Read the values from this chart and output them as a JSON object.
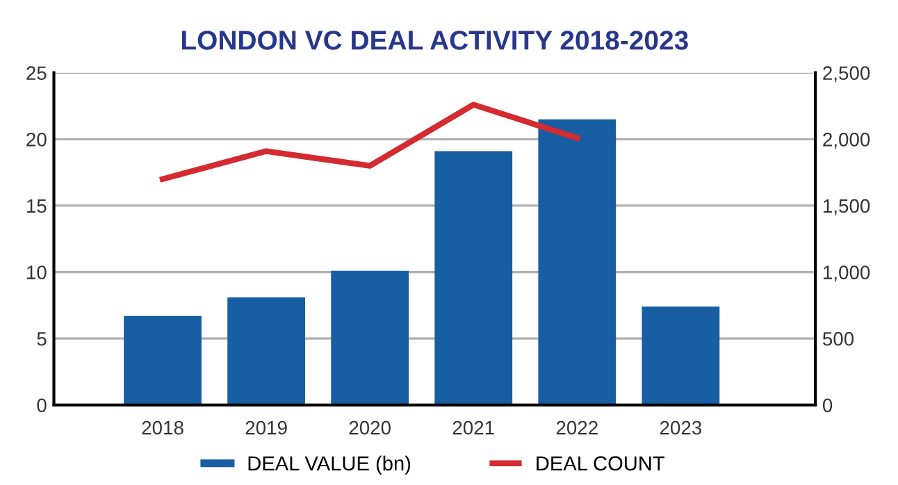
{
  "chart_data": {
    "type": "bar",
    "title": "LONDON VC DEAL ACTIVITY 2018-2023",
    "categories": [
      "2018",
      "2019",
      "2020",
      "2021",
      "2022",
      "2023"
    ],
    "series": [
      {
        "name": "DEAL VALUE (bn)",
        "color": "#175ea3",
        "values": [
          6.7,
          8.1,
          10.1,
          19.1,
          21.5,
          7.4
        ]
      },
      {
        "name": "DEAL COUNT",
        "type": "line",
        "axis": "y2",
        "color": "#d42a30",
        "values": [
          1700,
          1910,
          1800,
          2260,
          2010,
          null
        ]
      }
    ],
    "ylim": [
      0,
      25
    ],
    "yticks": [
      0,
      5,
      10,
      15,
      20,
      25
    ],
    "y2lim": [
      0,
      2500
    ],
    "y2ticks": [
      {
        "value": 0,
        "label": "0"
      },
      {
        "value": 500,
        "label": "500"
      },
      {
        "value": 1000,
        "label": "1,000"
      },
      {
        "value": 1500,
        "label": "1,500"
      },
      {
        "value": 2000,
        "label": "2,000"
      },
      {
        "value": 2500,
        "label": "2,500"
      }
    ],
    "grid": "y",
    "legend": "bottom",
    "marker": "none",
    "line_style": "solid"
  }
}
